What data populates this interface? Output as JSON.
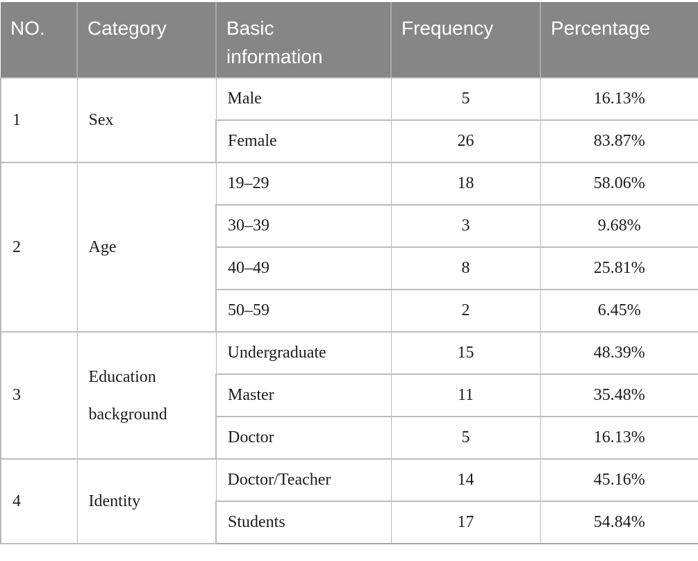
{
  "table": {
    "title_semantic": "participant-demographics-table",
    "columns": [
      "NO.",
      "Category",
      "Basic information",
      "Frequency",
      "Percentage"
    ],
    "groups": [
      {
        "no": "1",
        "category": "Sex",
        "rows": [
          {
            "info": "Male",
            "frequency": "5",
            "percentage": "16.13%"
          },
          {
            "info": "Female",
            "frequency": "26",
            "percentage": "83.87%"
          }
        ]
      },
      {
        "no": "2",
        "category": "Age",
        "rows": [
          {
            "info": "19–29",
            "frequency": "18",
            "percentage": "58.06%"
          },
          {
            "info": "30–39",
            "frequency": "3",
            "percentage": "9.68%"
          },
          {
            "info": "40–49",
            "frequency": "8",
            "percentage": "25.81%"
          },
          {
            "info": "50–59",
            "frequency": "2",
            "percentage": "6.45%"
          }
        ]
      },
      {
        "no": "3",
        "category": "Education background",
        "rows": [
          {
            "info": "Undergraduate",
            "frequency": "15",
            "percentage": "48.39%"
          },
          {
            "info": "Master",
            "frequency": "11",
            "percentage": "35.48%"
          },
          {
            "info": "Doctor",
            "frequency": "5",
            "percentage": "16.13%"
          }
        ]
      },
      {
        "no": "4",
        "category": "Identity",
        "rows": [
          {
            "info": "Doctor/Teacher",
            "frequency": "14",
            "percentage": "45.16%"
          },
          {
            "info": "Students",
            "frequency": "17",
            "percentage": "54.84%"
          }
        ]
      }
    ],
    "colors": {
      "header_background": "#868686",
      "header_text": "#ffffff",
      "header_divider": "#a9a9a9",
      "body_text": "#1c1c1c",
      "body_border": "#b8b8b8",
      "body_background": "#ffffff"
    }
  },
  "chart_data": {
    "type": "table",
    "columns": [
      "NO.",
      "Category",
      "Basic information",
      "Frequency",
      "Percentage"
    ],
    "rows": [
      [
        "1",
        "Sex",
        "Male",
        5,
        "16.13%"
      ],
      [
        "1",
        "Sex",
        "Female",
        26,
        "83.87%"
      ],
      [
        "2",
        "Age",
        "19–29",
        18,
        "58.06%"
      ],
      [
        "2",
        "Age",
        "30–39",
        3,
        "9.68%"
      ],
      [
        "2",
        "Age",
        "40–49",
        8,
        "25.81%"
      ],
      [
        "2",
        "Age",
        "50–59",
        2,
        "6.45%"
      ],
      [
        "3",
        "Education background",
        "Undergraduate",
        15,
        "48.39%"
      ],
      [
        "3",
        "Education background",
        "Master",
        11,
        "35.48%"
      ],
      [
        "3",
        "Education background",
        "Doctor",
        5,
        "16.13%"
      ],
      [
        "4",
        "Identity",
        "Doctor/Teacher",
        14,
        "45.16%"
      ],
      [
        "4",
        "Identity",
        "Students",
        17,
        "54.84%"
      ]
    ]
  }
}
